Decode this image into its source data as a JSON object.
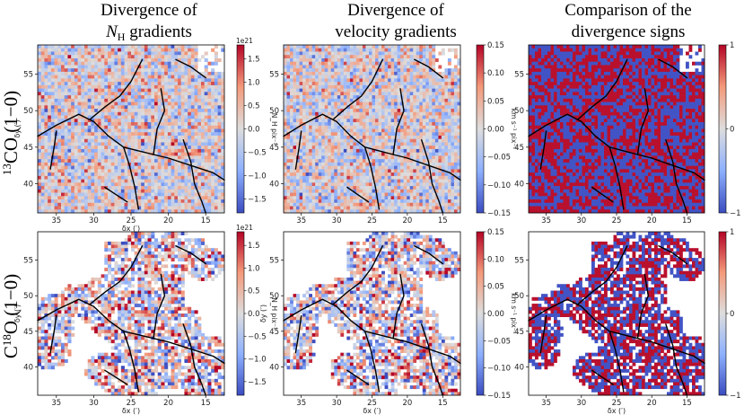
{
  "column_titles": [
    [
      "Divergence of",
      "N",
      "H",
      " gradients"
    ],
    [
      "Divergence of",
      "velocity gradients"
    ],
    [
      "Comparison of the",
      "divergence signs"
    ]
  ],
  "row_labels": [
    {
      "sup": "13",
      "main": "CO (1−0)",
      "pre": ""
    },
    {
      "sup": "18",
      "main": "O (1−0)",
      "pre": "C"
    }
  ],
  "chart_data": [
    {
      "type": "heatmap",
      "row": "13CO (1-0)",
      "column": "Divergence of N_H gradients",
      "xlabel": "δx (′)",
      "ylabel": "δy (′)",
      "xlim": [
        37.5,
        12.5
      ],
      "ylim": [
        36,
        59
      ],
      "xticks": [
        35,
        30,
        25,
        20,
        15
      ],
      "yticks": [
        40,
        45,
        50,
        55
      ],
      "colorbar": {
        "min": -1.8,
        "max": 1.8,
        "ticks": [
          "1.5",
          "1.0",
          "0.5",
          "0.0",
          "−0.5",
          "−1.0",
          "−1.5"
        ],
        "label": "N_H pix⁻¹",
        "exponent": "1e21",
        "cmap": "coolwarm"
      },
      "coverage": "full",
      "seed": 11
    },
    {
      "type": "heatmap",
      "row": "13CO (1-0)",
      "column": "Divergence of velocity gradients",
      "xlabel": "",
      "ylabel": "",
      "xlim": [
        37.5,
        12.5
      ],
      "ylim": [
        36,
        59
      ],
      "xticks": [
        35,
        30,
        25,
        20,
        15
      ],
      "yticks": [
        40,
        45,
        50,
        55
      ],
      "colorbar": {
        "min": -0.15,
        "max": 0.15,
        "ticks": [
          "0.15",
          "0.10",
          "0.05",
          "0.00",
          "−0.05",
          "−0.10",
          "−0.15"
        ],
        "label": "km s⁻¹ pix⁻¹",
        "exponent": "",
        "cmap": "coolwarm"
      },
      "coverage": "full",
      "seed": 23
    },
    {
      "type": "heatmap",
      "row": "13CO (1-0)",
      "column": "Comparison of the divergence signs",
      "xlabel": "",
      "ylabel": "",
      "xlim": [
        37.5,
        12.5
      ],
      "ylim": [
        36,
        59
      ],
      "xticks": [
        35,
        30,
        25,
        20,
        15
      ],
      "yticks": [
        40,
        45,
        50,
        55
      ],
      "colorbar": {
        "min": -1,
        "max": 1,
        "ticks": [
          "1",
          "0",
          "−1"
        ],
        "label": "",
        "exponent": "",
        "cmap": "coolwarm"
      },
      "coverage": "full",
      "seed": 37,
      "discrete": true
    },
    {
      "type": "heatmap",
      "row": "C18O (1-0)",
      "column": "Divergence of N_H gradients",
      "xlabel": "δx (′)",
      "ylabel": "δy (′)",
      "xlim": [
        37.5,
        12.5
      ],
      "ylim": [
        36,
        59
      ],
      "xticks": [
        35,
        30,
        25,
        20,
        15
      ],
      "yticks": [
        40,
        45,
        50,
        55
      ],
      "colorbar": {
        "min": -1.8,
        "max": 1.8,
        "ticks": [
          "1.5",
          "1.0",
          "0.5",
          "0.0",
          "−0.5",
          "−1.0",
          "−1.5"
        ],
        "label": "N_H pix⁻¹",
        "exponent": "1e21",
        "cmap": "coolwarm"
      },
      "coverage": "sparse",
      "seed": 41
    },
    {
      "type": "heatmap",
      "row": "C18O (1-0)",
      "column": "Divergence of velocity gradients",
      "xlabel": "δx (′)",
      "ylabel": "δy (′)",
      "xlim": [
        37.5,
        12.5
      ],
      "ylim": [
        36,
        59
      ],
      "xticks": [
        35,
        30,
        25,
        20,
        15
      ],
      "yticks": [
        40,
        45,
        50,
        55
      ],
      "colorbar": {
        "min": -0.15,
        "max": 0.15,
        "ticks": [
          "0.15",
          "0.10",
          "0.05",
          "0.00",
          "−0.05",
          "−0.10",
          "−0.15"
        ],
        "label": "km s⁻¹ pix⁻¹",
        "exponent": "",
        "cmap": "coolwarm"
      },
      "coverage": "sparse",
      "seed": 53
    },
    {
      "type": "heatmap",
      "row": "C18O (1-0)",
      "column": "Comparison of the divergence signs",
      "xlabel": "δx (′)",
      "ylabel": "",
      "xlim": [
        37.5,
        12.5
      ],
      "ylim": [
        36,
        59
      ],
      "xticks": [
        35,
        30,
        25,
        20,
        15
      ],
      "yticks": [
        40,
        45,
        50,
        55
      ],
      "colorbar": {
        "min": -1,
        "max": 1,
        "ticks": [
          "1",
          "0",
          "−1"
        ],
        "label": "",
        "exponent": "",
        "cmap": "coolwarm"
      },
      "coverage": "sparse",
      "seed": 67,
      "discrete": true
    }
  ]
}
